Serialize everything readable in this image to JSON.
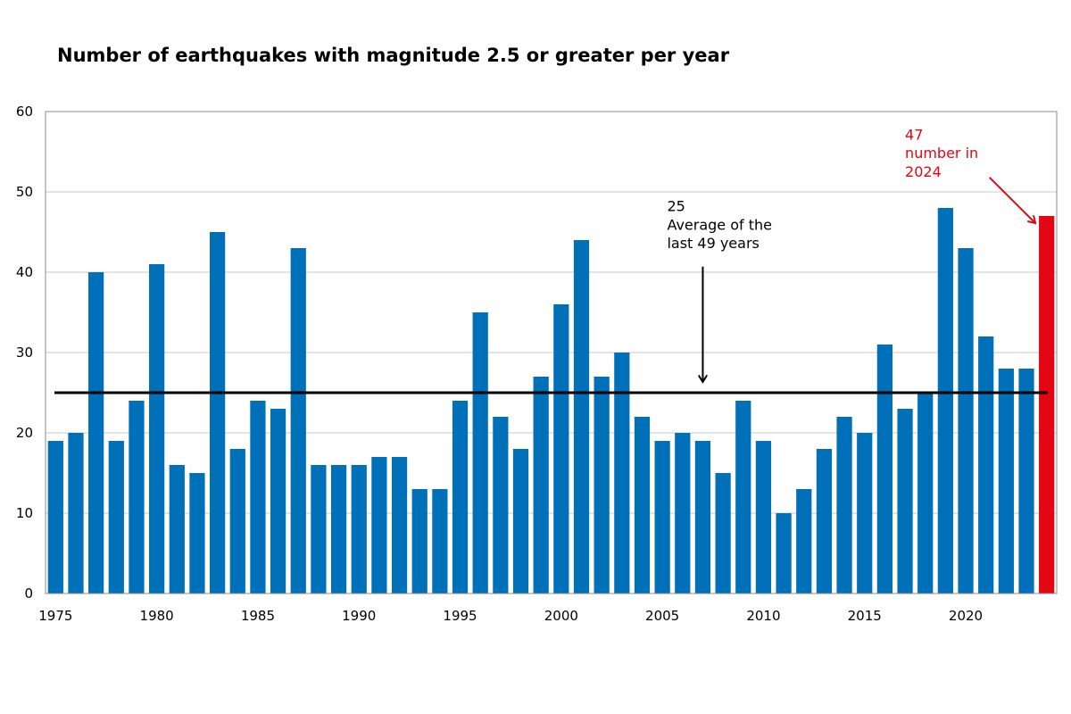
{
  "chart_data": {
    "type": "bar",
    "title": "Number of earthquakes with magnitude 2.5 or greater per year",
    "xlabel": "",
    "ylabel": "",
    "ylim": [
      0,
      60
    ],
    "yticks": [
      0,
      10,
      20,
      30,
      40,
      50,
      60
    ],
    "xticks": [
      1975,
      1980,
      1985,
      1990,
      1995,
      2000,
      2005,
      2010,
      2015,
      2020
    ],
    "grid": true,
    "categories": [
      1975,
      1976,
      1977,
      1978,
      1979,
      1980,
      1981,
      1982,
      1983,
      1984,
      1985,
      1986,
      1987,
      1988,
      1989,
      1990,
      1991,
      1992,
      1993,
      1994,
      1995,
      1996,
      1997,
      1998,
      1999,
      2000,
      2001,
      2002,
      2003,
      2004,
      2005,
      2006,
      2007,
      2008,
      2009,
      2010,
      2011,
      2012,
      2013,
      2014,
      2015,
      2016,
      2017,
      2018,
      2019,
      2020,
      2021,
      2022,
      2023,
      2024
    ],
    "values": [
      19,
      20,
      40,
      19,
      24,
      41,
      16,
      15,
      45,
      18,
      24,
      23,
      43,
      16,
      16,
      16,
      17,
      17,
      13,
      13,
      24,
      35,
      22,
      18,
      27,
      36,
      44,
      27,
      30,
      22,
      19,
      20,
      19,
      15,
      24,
      19,
      10,
      13,
      18,
      22,
      20,
      31,
      23,
      25,
      48,
      43,
      32,
      28,
      28,
      47
    ],
    "colors": {
      "bar": "#0070b8",
      "highlight": "#e30613",
      "average_line": "#000000",
      "grid": "#c8c8c8",
      "axis": "#8c8c8c"
    },
    "highlight_category": 2024,
    "average": {
      "value": 25,
      "label_value": "25",
      "label_lines": [
        "Average of the",
        "last 49 years"
      ]
    },
    "highlight_annotation": {
      "label_value": "47",
      "label_lines": [
        "number in",
        "2024"
      ]
    }
  }
}
